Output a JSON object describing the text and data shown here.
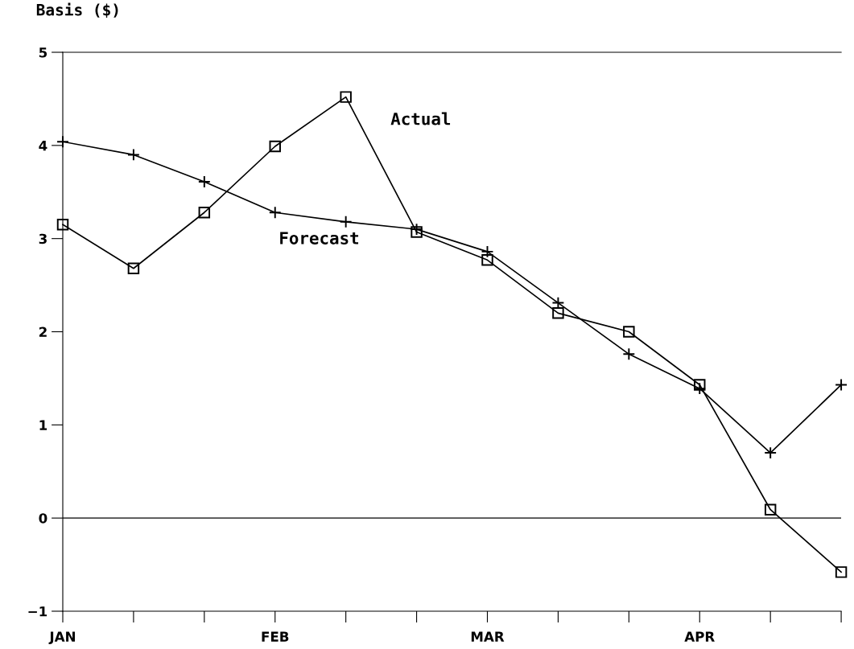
{
  "chart_data": {
    "type": "line",
    "ylabel": "Basis ($)",
    "categories": [
      "JAN",
      null,
      null,
      "FEB",
      null,
      null,
      "MAR",
      null,
      null,
      "APR",
      null,
      null
    ],
    "series": [
      {
        "name": "Actual",
        "color": "#000000",
        "marker": "square",
        "values": [
          3.15,
          2.68,
          3.28,
          3.99,
          4.52,
          3.07,
          2.77,
          2.2,
          2.0,
          1.43,
          0.09,
          -0.58
        ]
      },
      {
        "name": "Forecast",
        "color": "#000000",
        "marker": "cross",
        "values": [
          4.04,
          3.9,
          3.61,
          3.28,
          3.18,
          3.1,
          2.86,
          2.31,
          1.76,
          1.39,
          0.7,
          1.43
        ]
      }
    ],
    "ylim": [
      -1,
      5
    ],
    "yticks": [
      -1,
      0,
      1,
      2,
      3,
      4,
      5
    ],
    "ref_lines": [
      {
        "axis": "y",
        "value": 0,
        "color": "#000000"
      }
    ],
    "grid": false,
    "legend": false,
    "line_style": "solid"
  }
}
